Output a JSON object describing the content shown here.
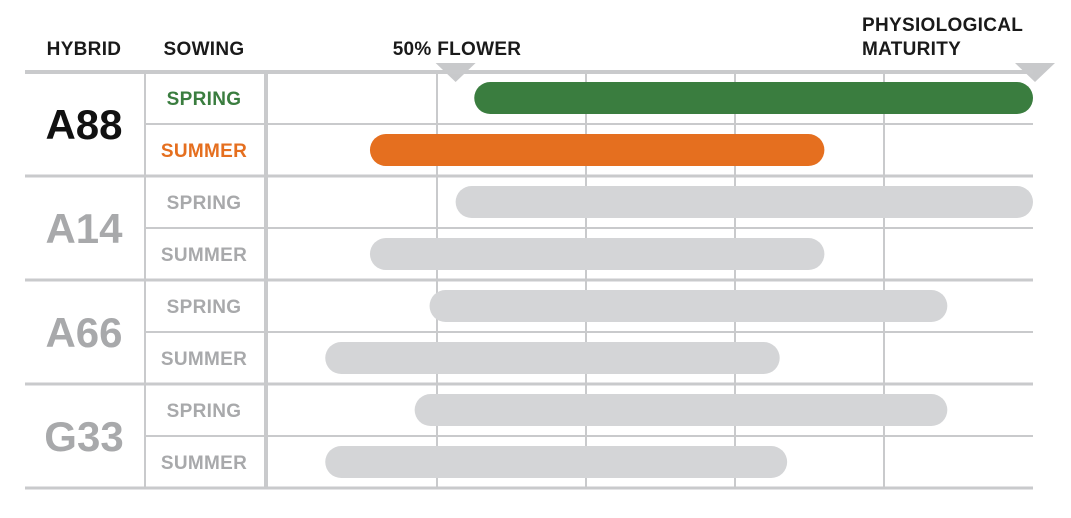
{
  "headers": {
    "hybrid": "HYBRID",
    "sowing": "SOWING",
    "flower": "50% FLOWER",
    "maturity_line1": "PHYSIOLOGICAL",
    "maturity_line2": "MATURITY"
  },
  "colors": {
    "spring_highlight": "#3a7d3f",
    "summer_highlight": "#e56f1f",
    "inactive_bar": "#d4d5d7",
    "inactive_text": "#a8a9ab",
    "active_text": "#111111",
    "grid": "#c9cacc",
    "marker": "#c8c9cb"
  },
  "chart_data": {
    "type": "gantt",
    "x_range": [
      0,
      1
    ],
    "grid_lines": [
      0.2,
      0.4,
      0.6,
      0.8
    ],
    "markers": [
      {
        "label": "50% FLOWER",
        "x": 0.225
      },
      {
        "label": "PHYSIOLOGICAL MATURITY",
        "x": 1.0
      }
    ],
    "highlighted_hybrid": "A88",
    "hybrids": [
      {
        "name": "A88",
        "rows": [
          {
            "sowing": "SPRING",
            "start": 0.25,
            "end": 1.0
          },
          {
            "sowing": "SUMMER",
            "start": 0.11,
            "end": 0.72
          }
        ]
      },
      {
        "name": "A14",
        "rows": [
          {
            "sowing": "SPRING",
            "start": 0.225,
            "end": 1.0
          },
          {
            "sowing": "SUMMER",
            "start": 0.11,
            "end": 0.72
          }
        ]
      },
      {
        "name": "A66",
        "rows": [
          {
            "sowing": "SPRING",
            "start": 0.19,
            "end": 0.885
          },
          {
            "sowing": "SUMMER",
            "start": 0.05,
            "end": 0.66
          }
        ]
      },
      {
        "name": "G33",
        "rows": [
          {
            "sowing": "SPRING",
            "start": 0.17,
            "end": 0.885
          },
          {
            "sowing": "SUMMER",
            "start": 0.05,
            "end": 0.67
          }
        ]
      }
    ]
  }
}
